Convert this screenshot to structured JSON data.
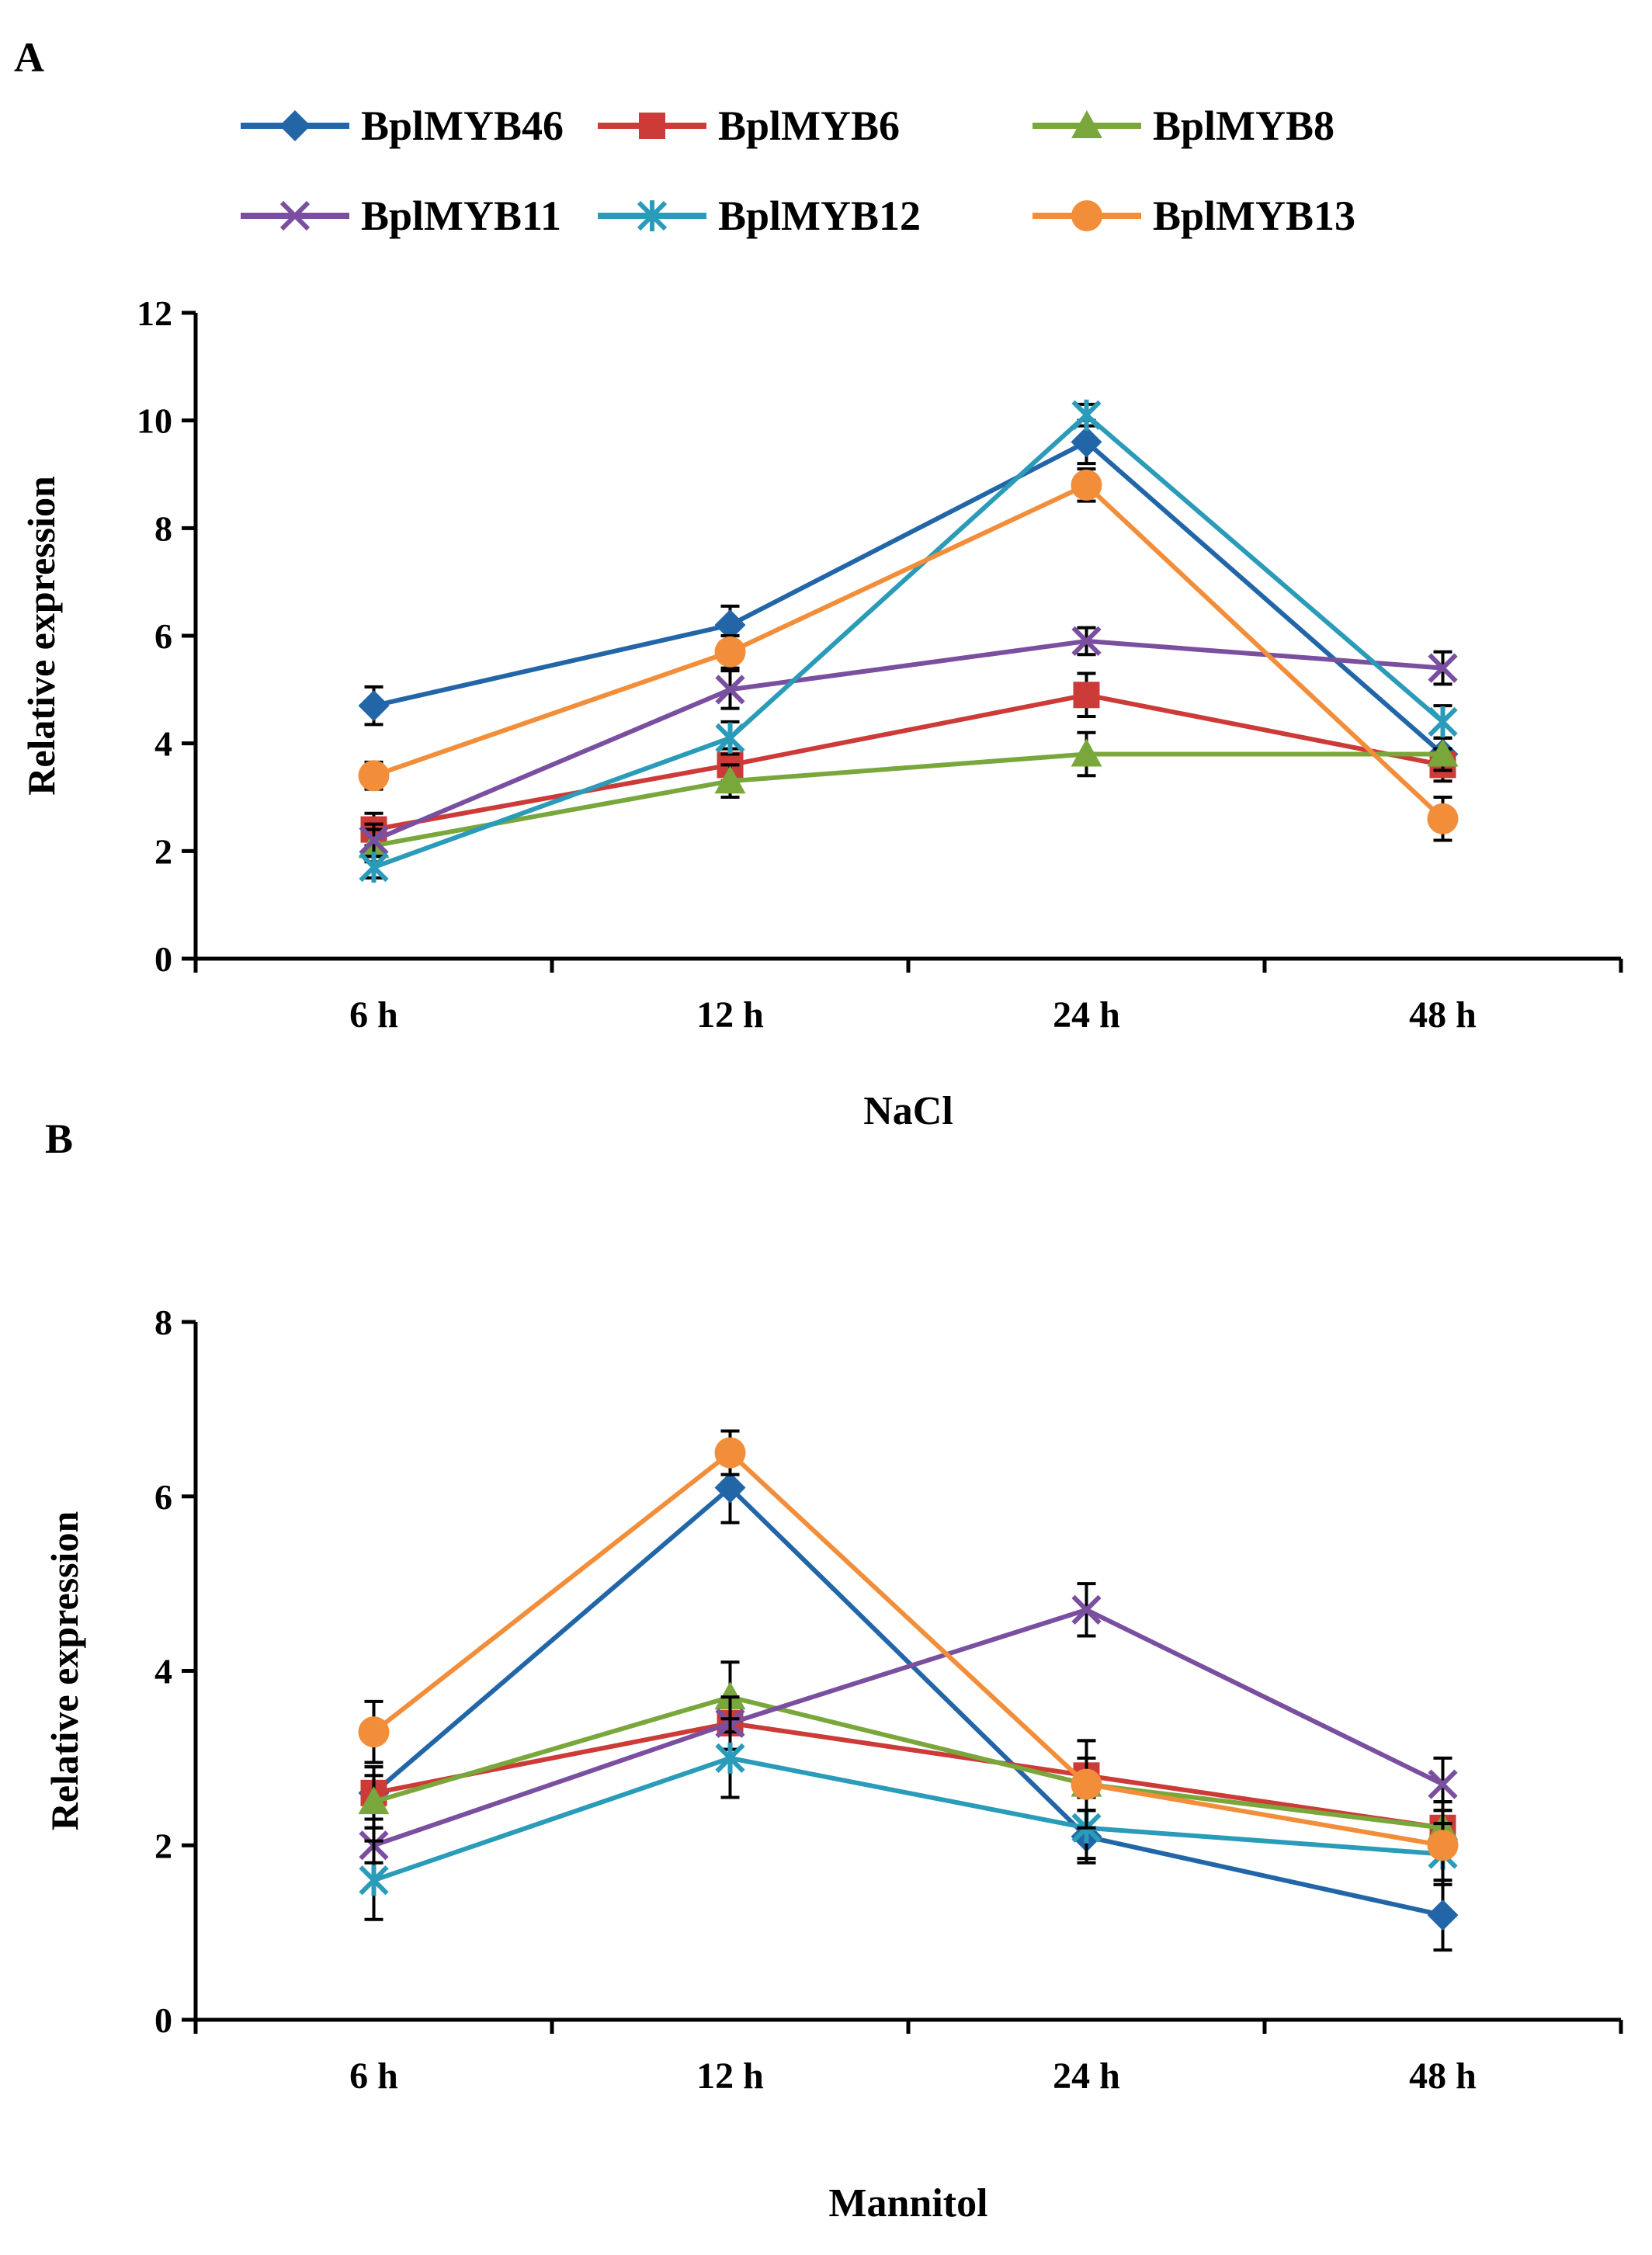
{
  "panel_labels": [
    "A",
    "B"
  ],
  "legend": {
    "entries": [
      "BplMYB46",
      "BplMYB6",
      "BplMYB8",
      "BplMYB11",
      "BplMYB12",
      "BplMYB13"
    ]
  },
  "series_styles": [
    {
      "name": "BplMYB46",
      "color": "#2266A8",
      "marker": "diamond"
    },
    {
      "name": "BplMYB6",
      "color": "#CC3B37",
      "marker": "square"
    },
    {
      "name": "BplMYB8",
      "color": "#7AA73C",
      "marker": "triangle"
    },
    {
      "name": "BplMYB11",
      "color": "#7B4FA0",
      "marker": "x"
    },
    {
      "name": "BplMYB12",
      "color": "#2A9BB8",
      "marker": "asterisk"
    },
    {
      "name": "BplMYB13",
      "color": "#F28E3A",
      "marker": "circle"
    }
  ],
  "chart_data": [
    {
      "type": "line",
      "panel": "A",
      "title": "",
      "xlabel": "NaCl",
      "ylabel": "Relative expression",
      "categories": [
        "6 h",
        "12 h",
        "24 h",
        "48 h"
      ],
      "ylim": [
        0,
        12
      ],
      "yticks": [
        0,
        2,
        4,
        6,
        8,
        10,
        12
      ],
      "grid": false,
      "legend_position": "top",
      "series": [
        {
          "name": "BplMYB46",
          "values": [
            4.7,
            6.2,
            9.6,
            3.8
          ],
          "errors": [
            0.35,
            0.35,
            0.4,
            0.3
          ]
        },
        {
          "name": "BplMYB6",
          "values": [
            2.4,
            3.6,
            4.9,
            3.6
          ],
          "errors": [
            0.3,
            0.3,
            0.4,
            0.3
          ]
        },
        {
          "name": "BplMYB8",
          "values": [
            2.1,
            3.3,
            3.8,
            3.8
          ],
          "errors": [
            0.3,
            0.3,
            0.4,
            0.3
          ]
        },
        {
          "name": "BplMYB11",
          "values": [
            2.2,
            5.0,
            5.9,
            5.4
          ],
          "errors": [
            0.3,
            0.35,
            0.25,
            0.3
          ]
        },
        {
          "name": "BplMYB12",
          "values": [
            1.7,
            4.1,
            10.1,
            4.4
          ],
          "errors": [
            0.2,
            0.3,
            0.2,
            0.3
          ]
        },
        {
          "name": "BplMYB13",
          "values": [
            3.4,
            5.7,
            8.8,
            2.6
          ],
          "errors": [
            0.25,
            0.3,
            0.3,
            0.4
          ]
        }
      ]
    },
    {
      "type": "line",
      "panel": "B",
      "title": "",
      "xlabel": "Mannitol",
      "ylabel": "Relative expression",
      "categories": [
        "6 h",
        "12 h",
        "24 h",
        "48 h"
      ],
      "ylim": [
        0,
        8
      ],
      "yticks": [
        0,
        2,
        4,
        6,
        8
      ],
      "grid": false,
      "legend_position": "none",
      "series": [
        {
          "name": "BplMYB46",
          "values": [
            2.6,
            6.1,
            2.1,
            1.2
          ],
          "errors": [
            0.3,
            0.4,
            0.3,
            0.4
          ]
        },
        {
          "name": "BplMYB6",
          "values": [
            2.6,
            3.4,
            2.8,
            2.2
          ],
          "errors": [
            0.3,
            0.3,
            0.4,
            0.3
          ]
        },
        {
          "name": "BplMYB8",
          "values": [
            2.5,
            3.7,
            2.7,
            2.2
          ],
          "errors": [
            0.3,
            0.4,
            0.3,
            0.3
          ]
        },
        {
          "name": "BplMYB11",
          "values": [
            2.0,
            3.4,
            4.7,
            2.7
          ],
          "errors": [
            0.2,
            0.3,
            0.3,
            0.3
          ]
        },
        {
          "name": "BplMYB12",
          "values": [
            1.6,
            3.0,
            2.2,
            1.9
          ],
          "errors": [
            0.45,
            0.45,
            0.35,
            0.35
          ]
        },
        {
          "name": "BplMYB13",
          "values": [
            3.3,
            6.5,
            2.7,
            2.0
          ],
          "errors": [
            0.35,
            0.25,
            0.5,
            0.4
          ]
        }
      ]
    }
  ]
}
